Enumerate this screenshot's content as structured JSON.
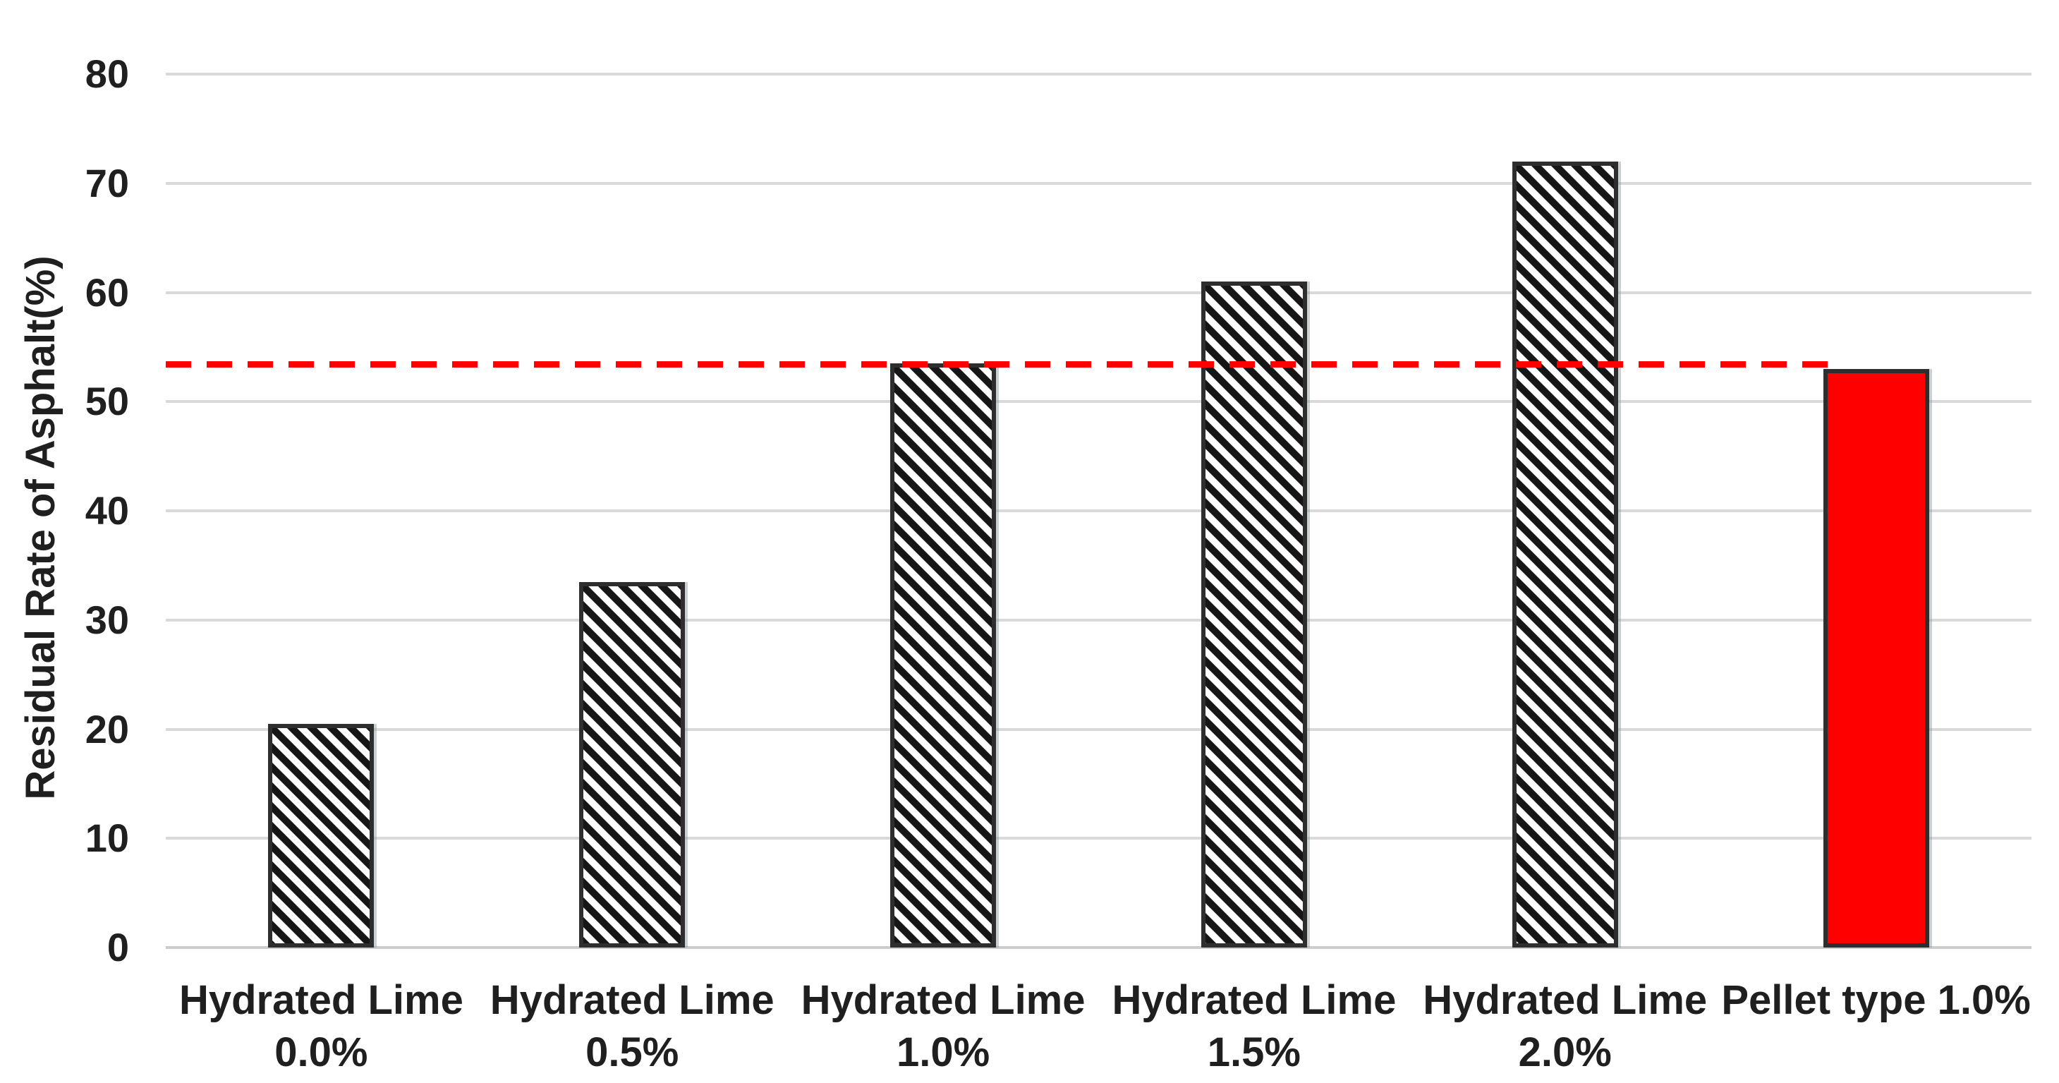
{
  "chart_data": {
    "type": "bar",
    "title": "",
    "ylabel": "Residual Rate of Asphalt(%)",
    "xlabel": "",
    "ylim": [
      0,
      80
    ],
    "ytick_step": 10,
    "ytick_labels": [
      "0",
      "10",
      "20",
      "30",
      "40",
      "50",
      "60",
      "70",
      "80"
    ],
    "categories": [
      {
        "line1": "Hydrated Lime",
        "line2": "0.0%"
      },
      {
        "line1": "Hydrated Lime",
        "line2": "0.5%"
      },
      {
        "line1": "Hydrated Lime",
        "line2": "1.0%"
      },
      {
        "line1": "Hydrated Lime",
        "line2": "1.5%"
      },
      {
        "line1": "Hydrated Lime",
        "line2": "2.0%"
      },
      {
        "line1": "Pellet type 1.0%",
        "line2": ""
      }
    ],
    "series": [
      {
        "name": "Residual Rate of Asphalt",
        "values": [
          20.5,
          33.5,
          53.5,
          61,
          72,
          53
        ]
      }
    ],
    "bar_styles": [
      "hatched",
      "hatched",
      "hatched",
      "hatched",
      "hatched",
      "solid"
    ],
    "reference_line": {
      "value": 53.4,
      "style": "dashed",
      "color": "#FF0000"
    },
    "grid": true,
    "legend": null,
    "colors": {
      "background": "#ffffff",
      "gridline": "#d9d9d9",
      "hatch_stroke": "#161616",
      "bar_border": "#2e2e2e",
      "solid_bar_fill": "#FF0000",
      "text": "#1f1f1f"
    }
  }
}
